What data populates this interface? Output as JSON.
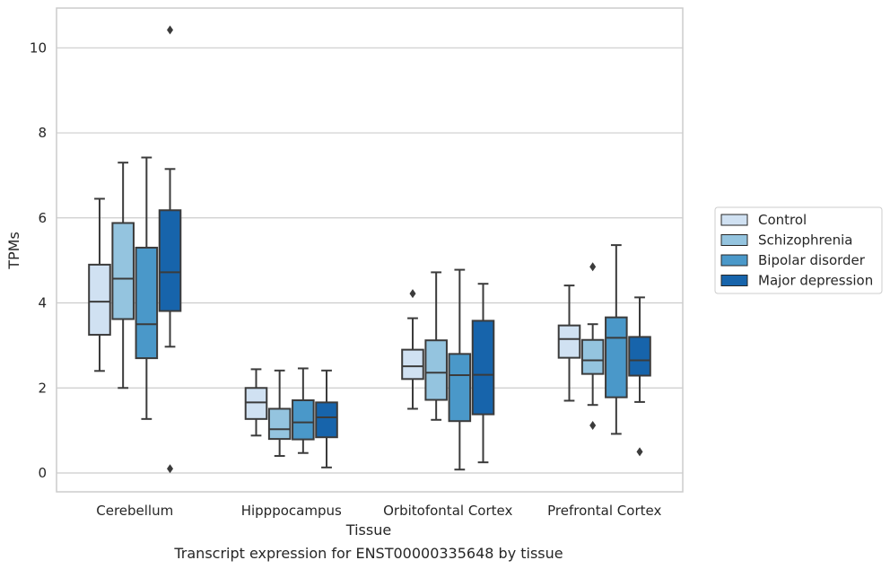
{
  "chart_data": {
    "type": "box",
    "caption": "Transcript expression for ENST00000335648 by tissue",
    "xlabel": "Tissue",
    "ylabel": "TPMs",
    "ylim": [
      -0.4,
      10.9
    ],
    "yticks": [
      0,
      2,
      4,
      6,
      8,
      10
    ],
    "grid": "horizontal",
    "legend_position": "right",
    "categories": [
      "Cerebellum",
      "Hipppocampus",
      "Orbitofontal Cortex",
      "Prefrontal Cortex"
    ],
    "series": [
      {
        "name": "Control",
        "color": "#d0e1f2",
        "boxes": [
          {
            "whislo": 2.4,
            "q1": 3.25,
            "med": 4.03,
            "q3": 4.9,
            "whishi": 6.45,
            "fliers": []
          },
          {
            "whislo": 0.88,
            "q1": 1.27,
            "med": 1.66,
            "q3": 2.0,
            "whishi": 2.44,
            "fliers": []
          },
          {
            "whislo": 1.51,
            "q1": 2.21,
            "med": 2.51,
            "q3": 2.9,
            "whishi": 3.64,
            "fliers": [
              4.22
            ]
          },
          {
            "whislo": 1.7,
            "q1": 2.71,
            "med": 3.15,
            "q3": 3.47,
            "whishi": 4.41,
            "fliers": []
          }
        ]
      },
      {
        "name": "Schizophrenia",
        "color": "#94c4df",
        "boxes": [
          {
            "whislo": 2.0,
            "q1": 3.62,
            "med": 4.57,
            "q3": 5.88,
            "whishi": 7.3,
            "fliers": []
          },
          {
            "whislo": 0.4,
            "q1": 0.8,
            "med": 1.03,
            "q3": 1.51,
            "whishi": 2.41,
            "fliers": []
          },
          {
            "whislo": 1.25,
            "q1": 1.72,
            "med": 2.36,
            "q3": 3.12,
            "whishi": 4.72,
            "fliers": []
          },
          {
            "whislo": 1.6,
            "q1": 2.33,
            "med": 2.65,
            "q3": 3.13,
            "whishi": 3.5,
            "fliers": [
              1.12,
              4.85
            ]
          }
        ]
      },
      {
        "name": "Bipolar disorder",
        "color": "#4a98c9",
        "boxes": [
          {
            "whislo": 1.27,
            "q1": 2.7,
            "med": 3.5,
            "q3": 5.3,
            "whishi": 7.42,
            "fliers": []
          },
          {
            "whislo": 0.47,
            "q1": 0.79,
            "med": 1.19,
            "q3": 1.71,
            "whishi": 2.46,
            "fliers": []
          },
          {
            "whislo": 0.08,
            "q1": 1.22,
            "med": 2.3,
            "q3": 2.8,
            "whishi": 4.78,
            "fliers": []
          },
          {
            "whislo": 0.92,
            "q1": 1.78,
            "med": 3.18,
            "q3": 3.66,
            "whishi": 5.36,
            "fliers": []
          }
        ]
      },
      {
        "name": "Major depression",
        "color": "#1764ab",
        "boxes": [
          {
            "whislo": 2.97,
            "q1": 3.81,
            "med": 4.72,
            "q3": 6.18,
            "whishi": 7.15,
            "fliers": [
              0.1,
              10.42
            ]
          },
          {
            "whislo": 0.13,
            "q1": 0.84,
            "med": 1.31,
            "q3": 1.66,
            "whishi": 2.41,
            "fliers": []
          },
          {
            "whislo": 0.25,
            "q1": 1.38,
            "med": 2.31,
            "q3": 3.58,
            "whishi": 4.45,
            "fliers": []
          },
          {
            "whislo": 1.67,
            "q1": 2.29,
            "med": 2.65,
            "q3": 3.2,
            "whishi": 4.13,
            "fliers": [
              0.5
            ]
          }
        ]
      }
    ]
  }
}
